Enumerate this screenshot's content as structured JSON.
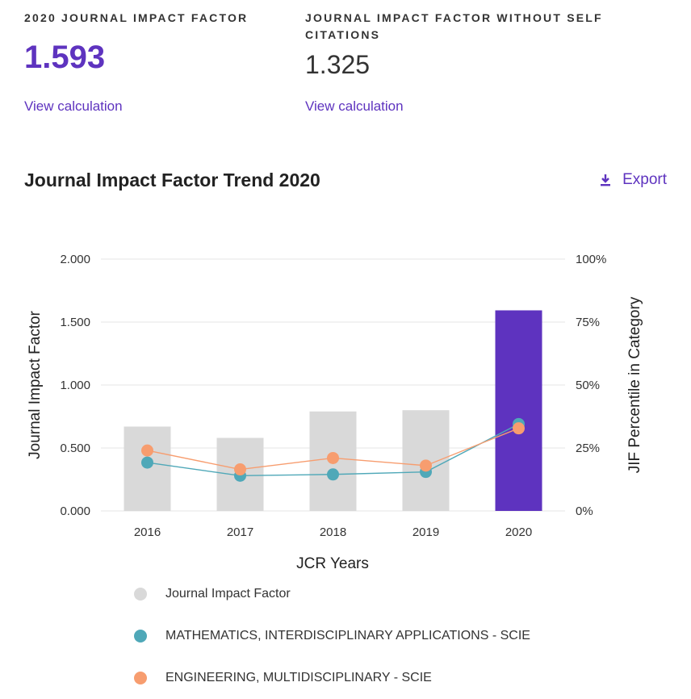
{
  "metrics": {
    "jif": {
      "label": "2020 JOURNAL IMPACT FACTOR",
      "value": "1.593",
      "link": "View calculation"
    },
    "jif_no_self": {
      "label_line1": "JOURNAL IMPACT FACTOR WITHOUT SELF",
      "label_line2": "CITATIONS",
      "value": "1.325",
      "link": "View calculation"
    }
  },
  "section": {
    "title": "Journal Impact Factor Trend 2020",
    "export_label": "Export"
  },
  "colors": {
    "accent": "#5e33bf",
    "bar": "#d9d9d9",
    "bar_highlight": "#5e33bf",
    "math": "#4fa8b8",
    "eng": "#f79d6f"
  },
  "icons": {
    "export": "download-icon"
  },
  "chart_data": {
    "type": "bar",
    "title": "",
    "xlabel": "JCR Years",
    "ylabel": "Journal Impact Factor",
    "y2label": "JIF Percentile in Category",
    "categories": [
      "2016",
      "2017",
      "2018",
      "2019",
      "2020"
    ],
    "ylim": [
      0,
      2
    ],
    "y_ticks": [
      "0.000",
      "0.500",
      "1.000",
      "1.500",
      "2.000"
    ],
    "y2lim": [
      0,
      100
    ],
    "y2_ticks": [
      "0%",
      "25%",
      "50%",
      "75%",
      "100%"
    ],
    "grid": true,
    "series": [
      {
        "name": "Journal Impact Factor",
        "kind": "bar",
        "axis": "left",
        "values": [
          0.67,
          0.58,
          0.79,
          0.8,
          1.593
        ],
        "highlight_index": 4
      },
      {
        "name": "MATHEMATICS, INTERDISCIPLINARY APPLICATIONS - SCIE",
        "kind": "line",
        "axis": "right",
        "values": [
          19.2,
          14,
          14.5,
          15.5,
          34.5
        ]
      },
      {
        "name": "ENGINEERING, MULTIDISCIPLINARY - SCIE",
        "kind": "line",
        "axis": "right",
        "values": [
          24,
          16.5,
          21,
          18,
          32.8
        ]
      }
    ],
    "legend_position": "bottom"
  }
}
